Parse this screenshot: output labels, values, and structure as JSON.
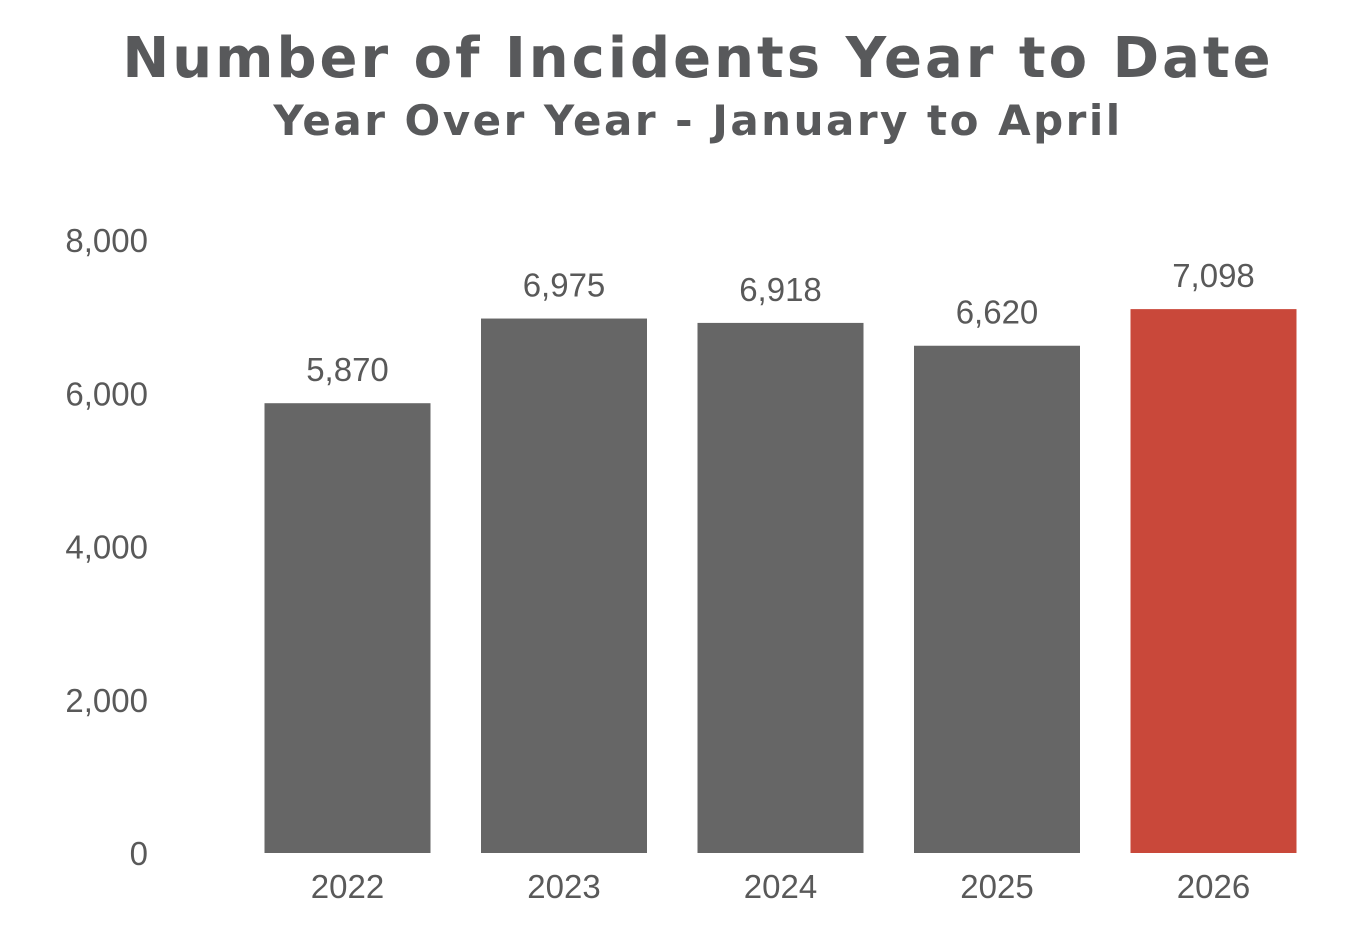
{
  "chart_data": {
    "type": "bar",
    "title": "Number of Incidents Year to Date",
    "subtitle": "Year Over Year - January to April",
    "categories": [
      "2022",
      "2023",
      "2024",
      "2025",
      "2026"
    ],
    "values": [
      5870,
      6975,
      6918,
      6620,
      7098
    ],
    "value_labels": [
      "5,870",
      "6,975",
      "6,918",
      "6,620",
      "7,098"
    ],
    "colors": [
      "#666666",
      "#666666",
      "#666666",
      "#666666",
      "#c9483a"
    ],
    "ylim": [
      0,
      8000
    ],
    "yticks": [
      0,
      2000,
      4000,
      6000,
      8000
    ],
    "ytick_labels": [
      "0",
      "2,000",
      "4,000",
      "6,000",
      "8,000"
    ],
    "grid": false,
    "legend": "none"
  }
}
